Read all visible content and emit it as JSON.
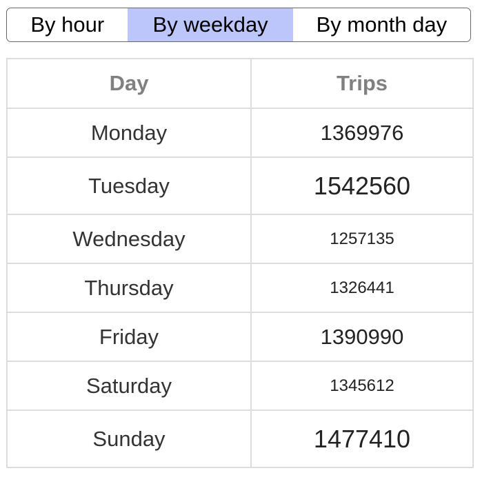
{
  "tabs": [
    {
      "label": "By hour",
      "active": false
    },
    {
      "label": "By weekday",
      "active": true
    },
    {
      "label": "By month day",
      "active": false
    }
  ],
  "accent_color": "#bcc6fa",
  "table": {
    "headers": [
      "Day",
      "Trips"
    ],
    "rows": [
      {
        "day": "Monday",
        "trips": "1369976"
      },
      {
        "day": "Tuesday",
        "trips": "1542560"
      },
      {
        "day": "Wednesday",
        "trips": "1257135"
      },
      {
        "day": "Thursday",
        "trips": "1326441"
      },
      {
        "day": "Friday",
        "trips": "1390990"
      },
      {
        "day": "Saturday",
        "trips": "1345612"
      },
      {
        "day": "Sunday",
        "trips": "1477410"
      }
    ]
  }
}
